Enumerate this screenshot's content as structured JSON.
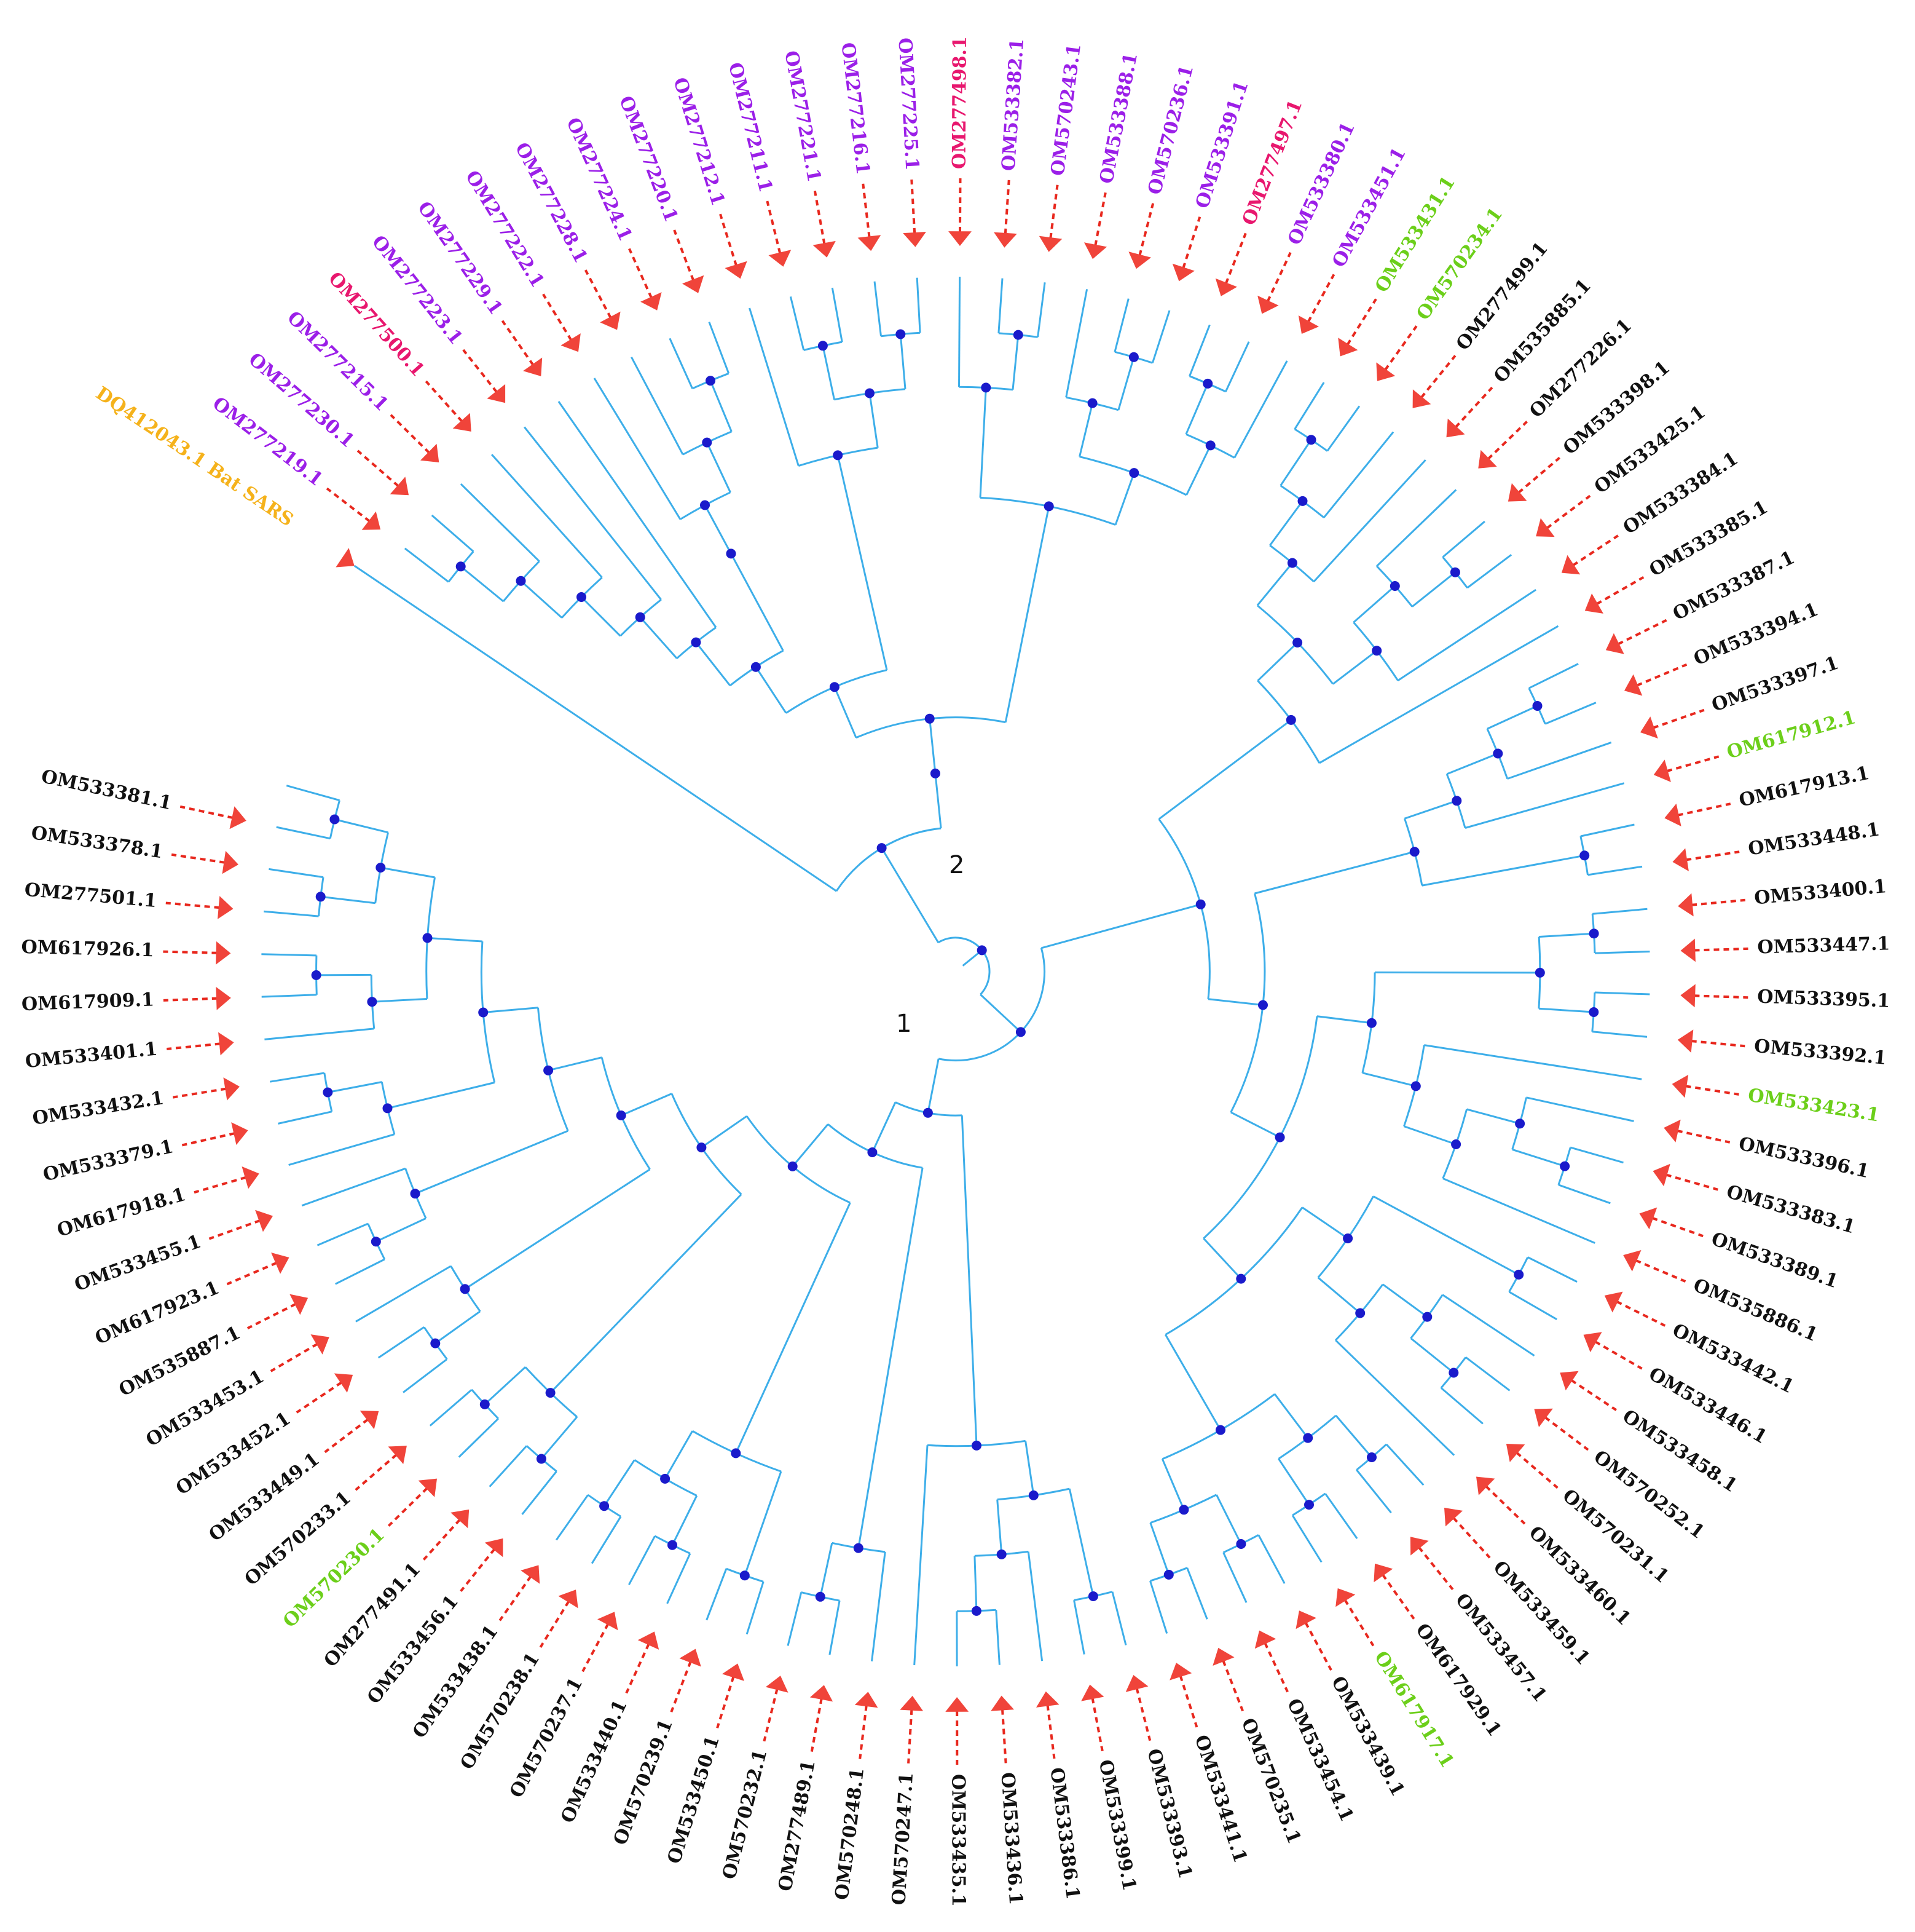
{
  "colors": {
    "branch": "#3daee9",
    "dash": "#e8281e",
    "arrow": "#f0443a",
    "node": "#1a1acb",
    "group": {
      "black": "#111111",
      "purple": "#9b1fe8",
      "magenta": "#e8176e",
      "green": "#6ccf1a",
      "orange": "#f5b21b"
    }
  },
  "internal_node_labels": [
    "1",
    "2"
  ],
  "leaves": [
    {
      "label": "DQ412043.1 Bat SARS",
      "group": "orange"
    },
    {
      "label": "OM277219.1",
      "group": "purple"
    },
    {
      "label": "OM277230.1",
      "group": "purple"
    },
    {
      "label": "OM277215.1",
      "group": "purple"
    },
    {
      "label": "OM277500.1",
      "group": "magenta"
    },
    {
      "label": "OM277223.1",
      "group": "purple"
    },
    {
      "label": "OM277229.1",
      "group": "purple"
    },
    {
      "label": "OM277222.1",
      "group": "purple"
    },
    {
      "label": "OM277228.1",
      "group": "purple"
    },
    {
      "label": "OM277224.1",
      "group": "purple"
    },
    {
      "label": "OM277220.1",
      "group": "purple"
    },
    {
      "label": "OM277212.1",
      "group": "purple"
    },
    {
      "label": "OM277211.1",
      "group": "purple"
    },
    {
      "label": "OM277221.1",
      "group": "purple"
    },
    {
      "label": "OM277216.1",
      "group": "purple"
    },
    {
      "label": "OM277225.1",
      "group": "purple"
    },
    {
      "label": "OM277498.1",
      "group": "magenta"
    },
    {
      "label": "OM533382.1",
      "group": "purple"
    },
    {
      "label": "OM570243.1",
      "group": "purple"
    },
    {
      "label": "OM533388.1",
      "group": "purple"
    },
    {
      "label": "OM570236.1",
      "group": "purple"
    },
    {
      "label": "OM533391.1",
      "group": "purple"
    },
    {
      "label": "OM277497.1",
      "group": "magenta"
    },
    {
      "label": "OM533380.1",
      "group": "purple"
    },
    {
      "label": "OM533451.1",
      "group": "purple"
    },
    {
      "label": "OM533431.1",
      "group": "green"
    },
    {
      "label": "OM570234.1",
      "group": "green"
    },
    {
      "label": "OM277499.1",
      "group": "black"
    },
    {
      "label": "OM535885.1",
      "group": "black"
    },
    {
      "label": "OM277226.1",
      "group": "black"
    },
    {
      "label": "OM533398.1",
      "group": "black"
    },
    {
      "label": "OM533425.1",
      "group": "black"
    },
    {
      "label": "OM533384.1",
      "group": "black"
    },
    {
      "label": "OM533385.1",
      "group": "black"
    },
    {
      "label": "OM533387.1",
      "group": "black"
    },
    {
      "label": "OM533394.1",
      "group": "black"
    },
    {
      "label": "OM533397.1",
      "group": "black"
    },
    {
      "label": "OM617912.1",
      "group": "green"
    },
    {
      "label": "OM617913.1",
      "group": "black"
    },
    {
      "label": "OM533448.1",
      "group": "black"
    },
    {
      "label": "OM533400.1",
      "group": "black"
    },
    {
      "label": "OM533447.1",
      "group": "black"
    },
    {
      "label": "OM533395.1",
      "group": "black"
    },
    {
      "label": "OM533392.1",
      "group": "black"
    },
    {
      "label": "OM533423.1",
      "group": "green"
    },
    {
      "label": "OM533396.1",
      "group": "black"
    },
    {
      "label": "OM533383.1",
      "group": "black"
    },
    {
      "label": "OM533389.1",
      "group": "black"
    },
    {
      "label": "OM535886.1",
      "group": "black"
    },
    {
      "label": "OM533442.1",
      "group": "black"
    },
    {
      "label": "OM533446.1",
      "group": "black"
    },
    {
      "label": "OM533458.1",
      "group": "black"
    },
    {
      "label": "OM570252.1",
      "group": "black"
    },
    {
      "label": "OM570231.1",
      "group": "black"
    },
    {
      "label": "OM533460.1",
      "group": "black"
    },
    {
      "label": "OM533459.1",
      "group": "black"
    },
    {
      "label": "OM533457.1",
      "group": "black"
    },
    {
      "label": "OM617929.1",
      "group": "black"
    },
    {
      "label": "OM617917.1",
      "group": "green"
    },
    {
      "label": "OM533439.1",
      "group": "black"
    },
    {
      "label": "OM533454.1",
      "group": "black"
    },
    {
      "label": "OM570235.1",
      "group": "black"
    },
    {
      "label": "OM533441.1",
      "group": "black"
    },
    {
      "label": "OM533393.1",
      "group": "black"
    },
    {
      "label": "OM533399.1",
      "group": "black"
    },
    {
      "label": "OM533386.1",
      "group": "black"
    },
    {
      "label": "OM533436.1",
      "group": "black"
    },
    {
      "label": "OM533435.1",
      "group": "black"
    },
    {
      "label": "OM570247.1",
      "group": "black"
    },
    {
      "label": "OM570248.1",
      "group": "black"
    },
    {
      "label": "OM277489.1",
      "group": "black"
    },
    {
      "label": "OM570232.1",
      "group": "black"
    },
    {
      "label": "OM533450.1",
      "group": "black"
    },
    {
      "label": "OM570239.1",
      "group": "black"
    },
    {
      "label": "OM533440.1",
      "group": "black"
    },
    {
      "label": "OM570237.1",
      "group": "black"
    },
    {
      "label": "OM570238.1",
      "group": "black"
    },
    {
      "label": "OM533438.1",
      "group": "black"
    },
    {
      "label": "OM533456.1",
      "group": "black"
    },
    {
      "label": "OM277491.1",
      "group": "black"
    },
    {
      "label": "OM570230.1",
      "group": "green"
    },
    {
      "label": "OM570233.1",
      "group": "black"
    },
    {
      "label": "OM533449.1",
      "group": "black"
    },
    {
      "label": "OM533452.1",
      "group": "black"
    },
    {
      "label": "OM533453.1",
      "group": "black"
    },
    {
      "label": "OM535887.1",
      "group": "black"
    },
    {
      "label": "OM617923.1",
      "group": "black"
    },
    {
      "label": "OM533455.1",
      "group": "black"
    },
    {
      "label": "OM617918.1",
      "group": "black"
    },
    {
      "label": "OM533379.1",
      "group": "black"
    },
    {
      "label": "OM533432.1",
      "group": "black"
    },
    {
      "label": "OM533401.1",
      "group": "black"
    },
    {
      "label": "OM617909.1",
      "group": "black"
    },
    {
      "label": "OM617926.1",
      "group": "black"
    },
    {
      "label": "OM277501.1",
      "group": "black"
    },
    {
      "label": "OM533378.1",
      "group": "black"
    },
    {
      "label": "OM533381.1",
      "group": "black"
    }
  ]
}
